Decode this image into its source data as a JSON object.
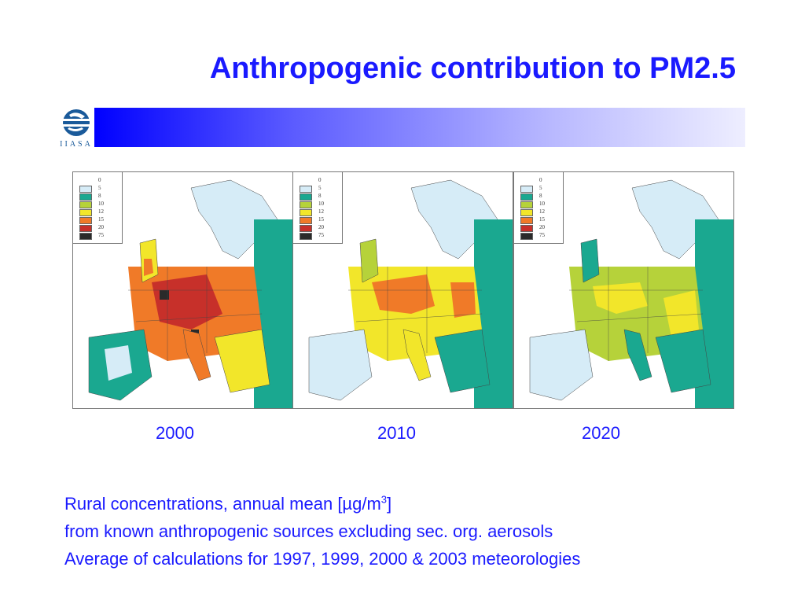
{
  "slide": {
    "title": "Anthropogenic contribution to PM2.5",
    "logo_text": "IIASA",
    "logo_icon": "iiasa-globe-logo-icon",
    "banner_colors": [
      "#0000ff",
      "#eeeeff"
    ],
    "legend": {
      "values": [
        "0",
        "5",
        "8",
        "10",
        "12",
        "15",
        "20",
        "75"
      ],
      "colors": [
        "#ffffff",
        "#d6ecf7",
        "#1aa890",
        "#b6d23a",
        "#f2e62a",
        "#f07a28",
        "#c7302a",
        "#2a2a2a"
      ]
    },
    "maps": [
      {
        "year": "2000",
        "label": "map-2000"
      },
      {
        "year": "2010",
        "label": "map-2010"
      },
      {
        "year": "2020",
        "label": "map-2020"
      }
    ],
    "caption": {
      "line1_prefix": "Rural concentrations, annual mean [µg/m",
      "line1_sup": "3",
      "line1_suffix": "]",
      "line2": "from known anthropogenic sources excluding sec. org. aerosols",
      "line3": "Average of calculations for 1997, 1999, 2000 & 2003 meteorologies"
    }
  }
}
